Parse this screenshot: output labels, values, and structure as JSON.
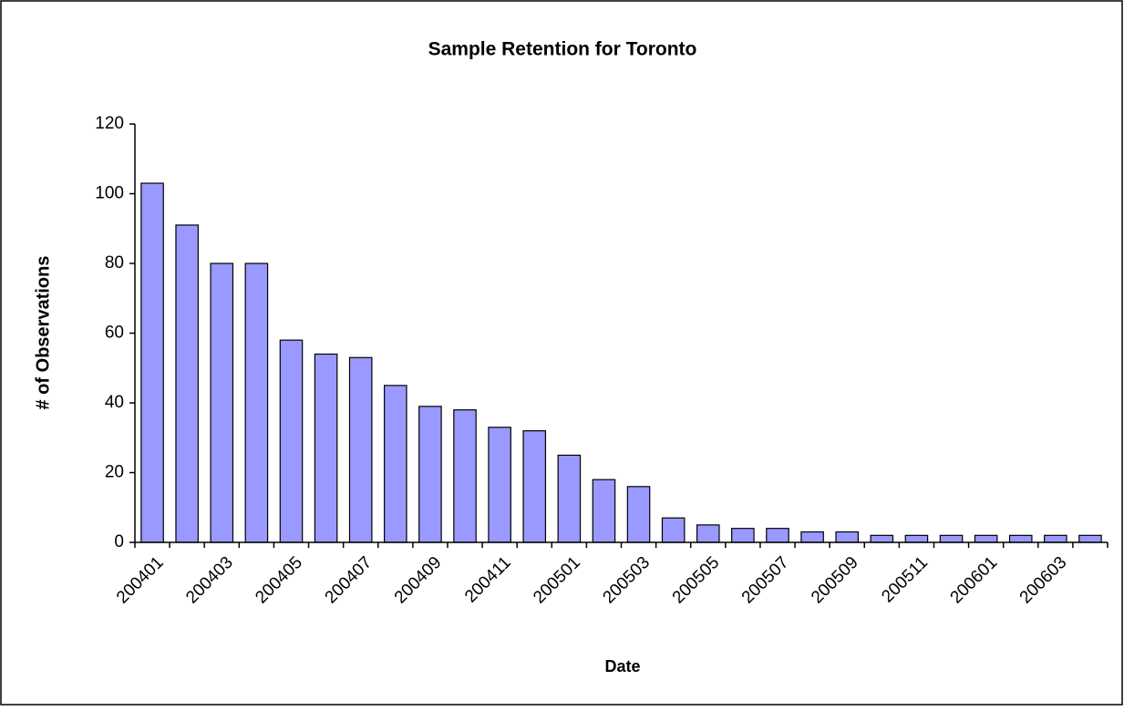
{
  "chart_data": {
    "type": "bar",
    "title": "Sample Retention for Toronto",
    "x_label": "Date",
    "y_label": "# of Observations",
    "categories": [
      "200401",
      null,
      "200403",
      null,
      "200405",
      null,
      "200407",
      null,
      "200409",
      null,
      "200411",
      null,
      "200501",
      null,
      "200503",
      null,
      "200505",
      null,
      "200507",
      null,
      "200509",
      null,
      "200511",
      null,
      "200601",
      null,
      "200603",
      null
    ],
    "values": [
      103,
      91,
      80,
      80,
      58,
      54,
      53,
      45,
      39,
      38,
      33,
      32,
      25,
      18,
      16,
      7,
      5,
      4,
      4,
      3,
      3,
      2,
      2,
      2,
      2,
      2,
      2,
      2
    ],
    "color": "#9999ff",
    "ylim": [
      0,
      120
    ],
    "yticks": [
      0,
      20,
      40,
      60,
      80,
      100,
      120
    ],
    "grid": false
  }
}
